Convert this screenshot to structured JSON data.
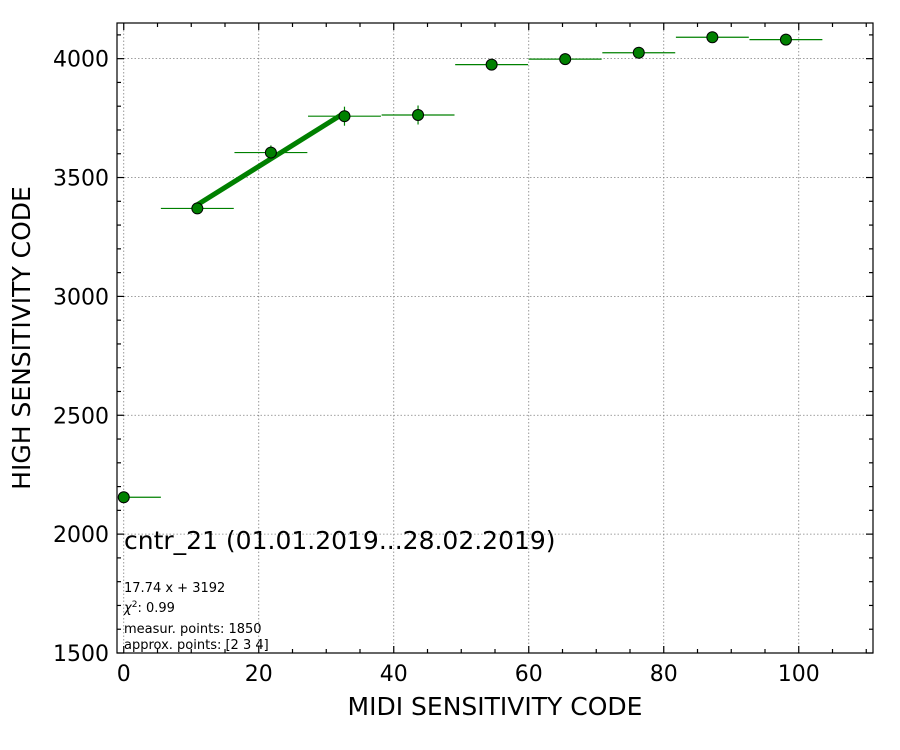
{
  "chart_data": {
    "type": "scatter",
    "xlabel": "MIDI SENSITIVITY CODE",
    "ylabel": "HIGH SENSITIVITY CODE",
    "xlim": [
      -1,
      111
    ],
    "ylim": [
      1500,
      4150
    ],
    "x_ticks": [
      0,
      20,
      40,
      60,
      80,
      100
    ],
    "y_ticks": [
      1500,
      2000,
      2500,
      3000,
      3500,
      4000
    ],
    "x_minor_step": 5,
    "y_minor_step": 100,
    "grid": true,
    "marker_color": "#008000",
    "line_color": "#008000",
    "points": [
      {
        "x": 0,
        "y": 2155,
        "xerr": [
          0,
          5.5
        ],
        "yerr": 0
      },
      {
        "x": 10.9,
        "y": 3370,
        "xerr": [
          5.4,
          5.4
        ],
        "yerr": 15
      },
      {
        "x": 21.8,
        "y": 3605,
        "xerr": [
          5.4,
          5.4
        ],
        "yerr": 30
      },
      {
        "x": 32.7,
        "y": 3758,
        "xerr": [
          5.4,
          5.4
        ],
        "yerr": 40
      },
      {
        "x": 43.6,
        "y": 3763,
        "xerr": [
          5.4,
          5.4
        ],
        "yerr": 40
      },
      {
        "x": 54.5,
        "y": 3975,
        "xerr": [
          5.4,
          5.4
        ],
        "yerr": 0
      },
      {
        "x": 65.4,
        "y": 3998,
        "xerr": [
          5.4,
          5.4
        ],
        "yerr": 0
      },
      {
        "x": 76.3,
        "y": 4025,
        "xerr": [
          5.4,
          5.4
        ],
        "yerr": 0
      },
      {
        "x": 87.2,
        "y": 4090,
        "xerr": [
          5.4,
          5.4
        ],
        "yerr": 0
      },
      {
        "x": 98.1,
        "y": 4080,
        "xerr": [
          5.4,
          5.4
        ],
        "yerr": 0
      }
    ],
    "fit_line": {
      "x": [
        10.9,
        32.7
      ],
      "slope": 17.74,
      "intercept": 3192
    },
    "annotations": {
      "title": "cntr_21 (01.01.2019...28.02.2019)",
      "equation": "17.74 x + 3192",
      "chi2_value": ": 0.99",
      "measur_points": "measur. points: 1850",
      "approx_points": "approx. points: [2 3 4]"
    }
  }
}
